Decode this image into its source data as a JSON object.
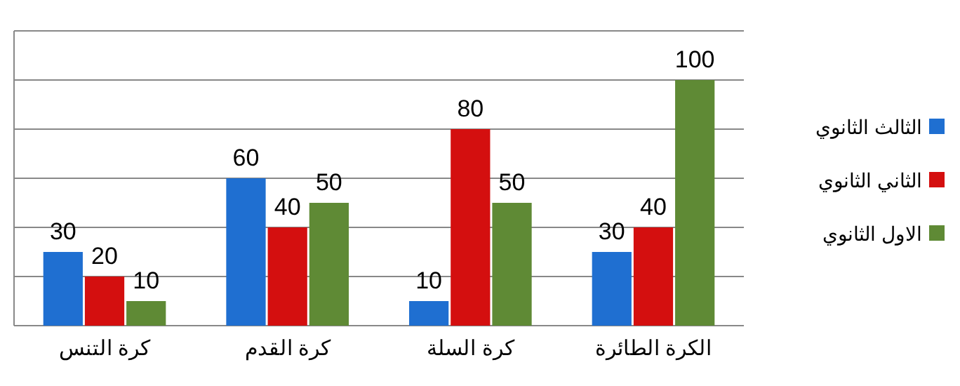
{
  "chart_data": {
    "type": "bar",
    "categories": [
      "كرة التنس",
      "كرة القدم",
      "كرة السلة",
      "الكرة الطائرة"
    ],
    "series": [
      {
        "name": "الثالث الثانوي",
        "color": "#1f6fd1",
        "values": [
          30,
          60,
          10,
          30
        ]
      },
      {
        "name": "الثاني الثانوي",
        "color": "#d40f0f",
        "values": [
          20,
          40,
          80,
          40
        ]
      },
      {
        "name": "الاول الثانوي",
        "color": "#5f8a35",
        "values": [
          10,
          50,
          50,
          100
        ]
      }
    ],
    "ylim": [
      0,
      120
    ],
    "yticks": [
      {
        "value": 0,
        "label": null
      },
      {
        "value": 20,
        "label": null
      },
      {
        "value": 40,
        "label": null
      },
      {
        "value": 60,
        "label": null
      },
      {
        "value": 80,
        "label": null
      },
      {
        "value": 100,
        "label": null
      },
      {
        "value": 120,
        "label": null
      }
    ],
    "tick_labels": "x",
    "grid": "y",
    "legend": "right",
    "data_labels": true
  }
}
